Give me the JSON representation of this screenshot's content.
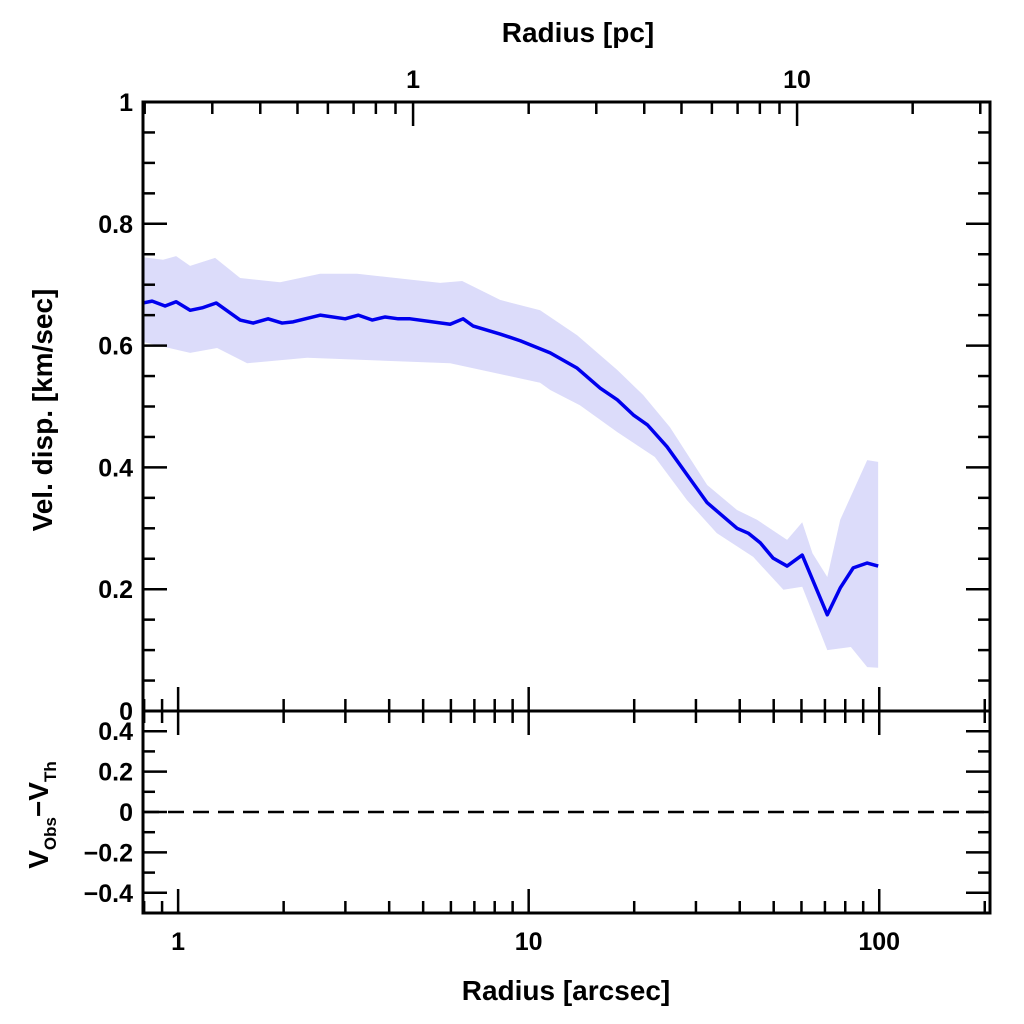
{
  "chart_data": [
    {
      "type": "line",
      "title": "",
      "xlabel": "Radius [arcsec]",
      "ylabel": "Vel. disp. [km/sec]",
      "top_xlabel": "Radius [pc]",
      "xscale": "log",
      "xlim": [
        0.794,
        207
      ],
      "ylim": [
        0,
        1
      ],
      "top_xlim": [
        0.198,
        31.8
      ],
      "x_tick_labels": [
        "1",
        "10",
        "100"
      ],
      "x_tick_values": [
        1,
        10,
        100
      ],
      "top_tick_labels": [
        "1",
        "10"
      ],
      "top_tick_values": [
        1,
        10
      ],
      "y_tick_labels": [
        "0",
        "0.2",
        "0.4",
        "0.6",
        "0.8",
        "1"
      ],
      "y_tick_values": [
        0,
        0.2,
        0.4,
        0.6,
        0.8,
        1
      ],
      "colors": {
        "line": "#0000ee",
        "band": "#dcdcfa"
      },
      "series": [
        {
          "name": "velocity dispersion",
          "x": [
            0.795,
            0.843,
            0.918,
            0.987,
            1.082,
            1.171,
            1.284,
            1.503,
            1.637,
            1.806,
            1.98,
            2.129,
            2.542,
            2.996,
            3.264,
            3.577,
            3.896,
            4.244,
            4.59,
            5.97,
            6.5,
            6.95,
            8.29,
            9.46,
            11.52,
            13.75,
            16.0,
            17.9,
            19.9,
            21.8,
            24.8,
            28.3,
            32.3,
            39.3,
            42.3,
            45.8,
            49.8,
            54.6,
            60.3,
            71.1,
            77.4,
            84.3,
            92.4,
            99.3
          ],
          "y": [
            0.67,
            0.673,
            0.665,
            0.672,
            0.658,
            0.662,
            0.67,
            0.642,
            0.637,
            0.644,
            0.637,
            0.639,
            0.65,
            0.644,
            0.65,
            0.642,
            0.647,
            0.644,
            0.644,
            0.635,
            0.644,
            0.632,
            0.619,
            0.608,
            0.588,
            0.563,
            0.53,
            0.511,
            0.486,
            0.47,
            0.434,
            0.388,
            0.342,
            0.3,
            0.292,
            0.276,
            0.251,
            0.238,
            0.256,
            0.158,
            0.202,
            0.235,
            0.243,
            0.238
          ]
        },
        {
          "name": "upper bound",
          "x": [
            0.795,
            0.906,
            0.987,
            1.082,
            1.275,
            1.503,
            1.953,
            2.542,
            3.24,
            5.59,
            6.46,
            8.29,
            10.78,
            13.75,
            17.9,
            21.2,
            25.3,
            32.3,
            39.3,
            44.8,
            54.6,
            60.3,
            64.5,
            71.1,
            77.4,
            92.4,
            99.3
          ],
          "y": [
            0.745,
            0.741,
            0.747,
            0.731,
            0.744,
            0.711,
            0.704,
            0.718,
            0.718,
            0.703,
            0.706,
            0.675,
            0.658,
            0.617,
            0.56,
            0.519,
            0.466,
            0.371,
            0.33,
            0.314,
            0.281,
            0.31,
            0.259,
            0.22,
            0.314,
            0.412,
            0.409
          ]
        },
        {
          "name": "lower bound",
          "x": [
            0.795,
            1.082,
            1.292,
            1.574,
            2.334,
            5.97,
            10.78,
            11.52,
            14.0,
            17.9,
            22.9,
            28.3,
            34.4,
            43.7,
            53.3,
            60.3,
            71.1,
            83.0,
            92.4,
            99.3
          ],
          "y": [
            0.606,
            0.588,
            0.596,
            0.571,
            0.58,
            0.571,
            0.539,
            0.527,
            0.502,
            0.458,
            0.417,
            0.346,
            0.292,
            0.253,
            0.199,
            0.204,
            0.1,
            0.105,
            0.072,
            0.071
          ]
        }
      ]
    },
    {
      "type": "line",
      "ylabel_main": "V",
      "ylabel_sub1": "Obs",
      "ylabel_minus": "−",
      "ylabel_sub2": "Th",
      "ylabel2": "V",
      "xscale": "log",
      "xlim": [
        0.794,
        207
      ],
      "ylim": [
        -0.5,
        0.5
      ],
      "y_tick_labels": [
        "0.4",
        "0.2",
        "0",
        "−0.2",
        "−0.4"
      ],
      "y_tick_values": [
        0.4,
        0.2,
        0,
        -0.2,
        -0.4
      ],
      "series": [
        {
          "name": "zero reference",
          "style": "dashed",
          "y": 0
        }
      ]
    }
  ]
}
